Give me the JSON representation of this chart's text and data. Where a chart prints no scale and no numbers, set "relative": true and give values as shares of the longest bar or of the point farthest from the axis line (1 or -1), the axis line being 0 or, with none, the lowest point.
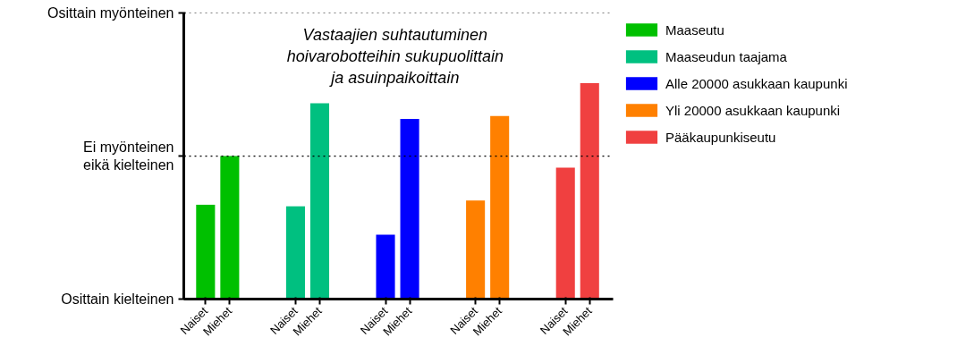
{
  "chart_data": {
    "type": "bar",
    "title": "Vastaajien suhtautuminen\nhoivarobotteihin sukupuolittain\nja asuinpaikoittain",
    "categories": [
      "Naiset",
      "Miehet",
      "Naiset",
      "Miehet",
      "Naiset",
      "Miehet",
      "Naiset",
      "Miehet",
      "Naiset",
      "Miehet"
    ],
    "series": [
      {
        "name": "Maaseutu",
        "color": "#00c000",
        "values": [
          0.437,
          0.662,
          null,
          null,
          null,
          null,
          null,
          null,
          null,
          null
        ]
      },
      {
        "name": "Maaseudun taajama",
        "color": "#00c080",
        "values": [
          null,
          null,
          0.43,
          0.907,
          null,
          null,
          null,
          null,
          null,
          null
        ]
      },
      {
        "name": "Alle 20000 asukkaan kaupunki",
        "color": "#0000ff",
        "values": [
          null,
          null,
          null,
          null,
          0.298,
          0.834,
          null,
          null,
          null,
          null
        ]
      },
      {
        "name": "Yli 20000 asukkaan kaupunki",
        "color": "#ff8000",
        "values": [
          null,
          null,
          null,
          null,
          null,
          null,
          0.457,
          0.848,
          null,
          null
        ]
      },
      {
        "name": "Pääkaupunkiseutu",
        "color": "#f04040",
        "values": [
          null,
          null,
          null,
          null,
          null,
          null,
          null,
          null,
          0.609,
          1.0
        ]
      }
    ],
    "relative": true,
    "annotations": [
      "Osittain kielteinen"
    ],
    "ref_lines": [
      {
        "axis": "y",
        "value": 1.325,
        "label": "Osittain myönteinen",
        "line_style": "dotted"
      },
      {
        "axis": "y",
        "value": 0.662,
        "label": "Ei myönteinen\neikä kielteinen",
        "line_style": "dotted"
      }
    ],
    "grid": false,
    "legend": "right"
  }
}
